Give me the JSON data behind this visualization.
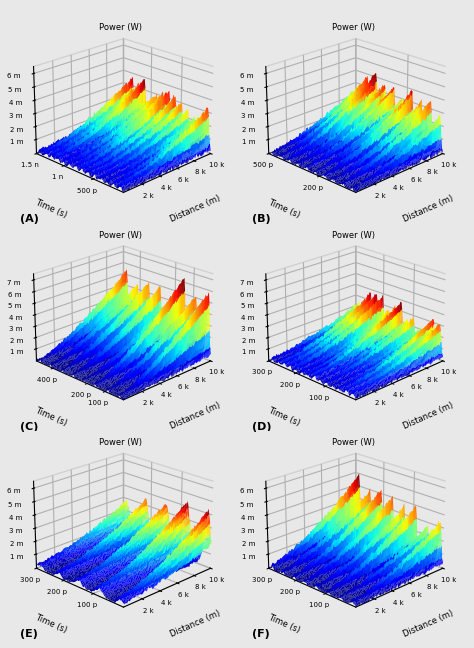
{
  "panels": [
    {
      "label": "A",
      "zlabel": "Power (W)",
      "xlabel": "Distance (m)",
      "ylabel": "Time (s)",
      "x_ticks_vals": [
        0.2,
        0.4,
        0.6,
        0.8,
        1.0
      ],
      "x_ticks_labels": [
        "2 k",
        "4 k",
        "6 k",
        "8 k",
        "10 k"
      ],
      "y_ticks_vals": [
        0.33,
        0.67,
        1.0
      ],
      "y_ticks_labels": [
        "500 p",
        "1 n",
        "1.5 n"
      ],
      "z_ticks_labels": [
        "1 m",
        "2 m",
        "3 m",
        "4 m",
        "5 m",
        "6 m"
      ],
      "zmax": 6.5,
      "n_peaks": 14,
      "peak_growth": "mild",
      "seed": 1
    },
    {
      "label": "B",
      "zlabel": "Power (W)",
      "xlabel": "Distance (m)",
      "ylabel": "Time (s)",
      "x_ticks_vals": [
        0.2,
        0.4,
        0.6,
        0.8,
        1.0
      ],
      "x_ticks_labels": [
        "2 k",
        "4 k",
        "6 k",
        "8 k",
        "10 k"
      ],
      "y_ticks_vals": [
        0.4,
        1.0
      ],
      "y_ticks_labels": [
        "200 p",
        "500 p"
      ],
      "z_ticks_labels": [
        "1 m",
        "2 m",
        "3 m",
        "4 m",
        "5 m",
        "6 m"
      ],
      "zmax": 6.5,
      "n_peaks": 10,
      "peak_growth": "moderate",
      "seed": 2
    },
    {
      "label": "C",
      "zlabel": "Power (W)",
      "xlabel": "Distance (m)",
      "ylabel": "Time (s)",
      "x_ticks_vals": [
        0.2,
        0.4,
        0.6,
        0.8,
        1.0
      ],
      "x_ticks_labels": [
        "2 k",
        "4 k",
        "6 k",
        "8 k",
        "10 k"
      ],
      "y_ticks_vals": [
        0.2,
        0.4,
        0.8
      ],
      "y_ticks_labels": [
        "100 p",
        "200 p",
        "400 p"
      ],
      "z_ticks_labels": [
        "1 m",
        "2 m",
        "3 m",
        "4 m",
        "5 m",
        "6 m",
        "7 m"
      ],
      "zmax": 7.5,
      "n_peaks": 8,
      "peak_growth": "strong",
      "seed": 3
    },
    {
      "label": "D",
      "zlabel": "Power (W)",
      "xlabel": "Distance (m)",
      "ylabel": "Time (s)",
      "x_ticks_vals": [
        0.2,
        0.4,
        0.6,
        0.8,
        1.0
      ],
      "x_ticks_labels": [
        "2 k",
        "4 k",
        "6 k",
        "8 k",
        "10 k"
      ],
      "y_ticks_vals": [
        0.33,
        0.67,
        1.0
      ],
      "y_ticks_labels": [
        "100 p",
        "200 p",
        "300 p"
      ],
      "z_ticks_labels": [
        "1 m",
        "2 m",
        "3 m",
        "4 m",
        "5 m",
        "6 m",
        "7 m"
      ],
      "zmax": 7.5,
      "n_peaks": 14,
      "peak_growth": "mild",
      "seed": 4
    },
    {
      "label": "E",
      "zlabel": "Power (W)",
      "xlabel": "Distance (m)",
      "ylabel": "Time (s)",
      "x_ticks_vals": [
        0.2,
        0.4,
        0.6,
        0.8,
        1.0
      ],
      "x_ticks_labels": [
        "2 k",
        "4 k",
        "6 k",
        "8 k",
        "10 k"
      ],
      "y_ticks_vals": [
        0.33,
        0.67,
        1.0
      ],
      "y_ticks_labels": [
        "100 p",
        "200 p",
        "300 p"
      ],
      "z_ticks_labels": [
        "1 m",
        "2 m",
        "3 m",
        "4 m",
        "5 m",
        "6 m"
      ],
      "zmax": 6.5,
      "n_peaks": 5,
      "peak_growth": "wide_grow",
      "seed": 5
    },
    {
      "label": "F",
      "zlabel": "Power (W)",
      "xlabel": "Distance (m)",
      "ylabel": "Time (s)",
      "x_ticks_vals": [
        0.2,
        0.4,
        0.6,
        0.8,
        1.0
      ],
      "x_ticks_labels": [
        "2 k",
        "4 k",
        "6 k",
        "8 k",
        "10 k"
      ],
      "y_ticks_vals": [
        0.33,
        0.67,
        1.0
      ],
      "y_ticks_labels": [
        "100 p",
        "200 p",
        "300 p"
      ],
      "z_ticks_labels": [
        "1 m",
        "2 m",
        "3 m",
        "4 m",
        "5 m",
        "6 m"
      ],
      "zmax": 6.5,
      "n_peaks": 8,
      "peak_growth": "moderate",
      "seed": 6
    }
  ],
  "cmap": "jet",
  "fig_bg": "#e8e8e8",
  "grid_color": "#bbbbbb",
  "label_fontsize": 6,
  "tick_fontsize": 5,
  "title_fontsize": 6
}
